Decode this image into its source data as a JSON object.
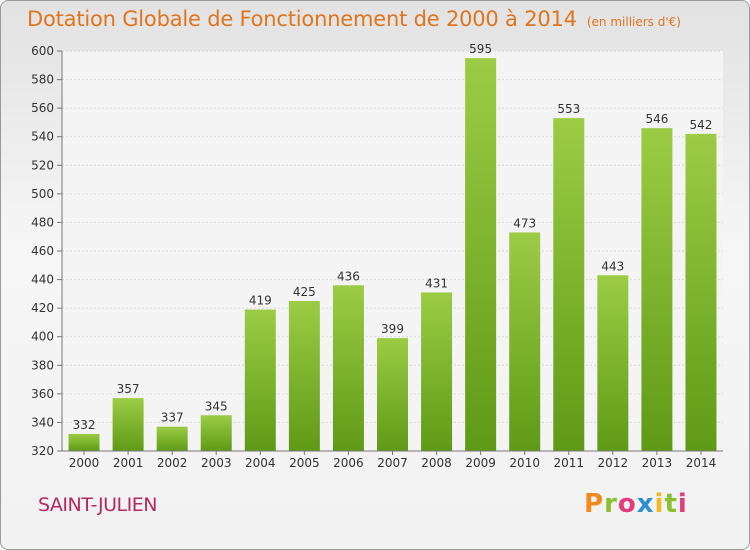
{
  "header": {
    "title": "Dotation Globale de Fonctionnement de 2000 à 2014",
    "subtitle": "(en milliers d'€)"
  },
  "footer": {
    "commune": "SAINT-JULIEN",
    "logo": [
      "P",
      "r",
      "o",
      "x",
      "i",
      "t",
      "i"
    ],
    "logo_colors": [
      "#f08a1e",
      "#8cbf2d",
      "#e23b7e",
      "#2e8fd0",
      "#f0b81e",
      "#8cbf2d",
      "#e23b7e"
    ]
  },
  "colors": {
    "title": "#e0751e",
    "bar_top": "#9ccc45",
    "bar_bottom": "#5f9a16",
    "commune": "#b8275e"
  },
  "chart_data": {
    "type": "bar",
    "title": "Dotation Globale de Fonctionnement de 2000 à 2014",
    "subtitle": "(en milliers d'€)",
    "categories": [
      "2000",
      "2001",
      "2002",
      "2003",
      "2004",
      "2005",
      "2006",
      "2007",
      "2008",
      "2009",
      "2010",
      "2011",
      "2012",
      "2013",
      "2014"
    ],
    "values": [
      332,
      357,
      337,
      345,
      419,
      425,
      436,
      399,
      431,
      595,
      473,
      553,
      443,
      546,
      542
    ],
    "ylim": [
      320,
      600
    ],
    "yticks": [
      320,
      340,
      360,
      380,
      400,
      420,
      440,
      460,
      480,
      500,
      520,
      540,
      560,
      580,
      600
    ],
    "grid": true,
    "legend": "none"
  }
}
